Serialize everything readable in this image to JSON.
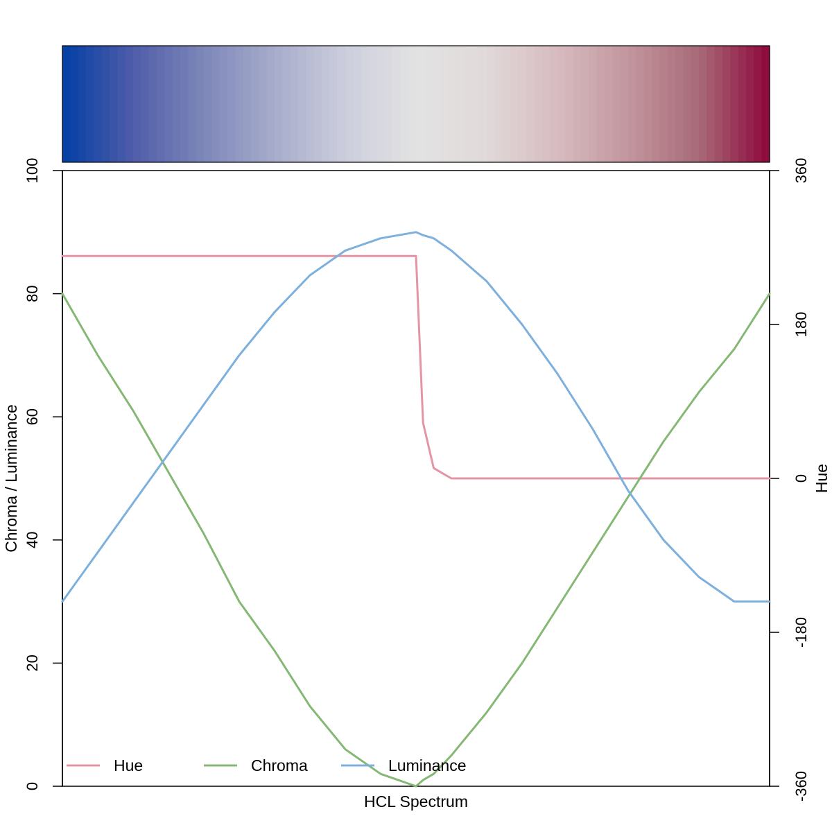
{
  "chart_data": {
    "type": "line",
    "title": "",
    "xlabel": "HCL Spectrum",
    "ylabel_left": "Chroma / Luminance",
    "ylabel_right": "Hue",
    "ylim_left": [
      0,
      100
    ],
    "ylim_right": [
      -360,
      360
    ],
    "yticks_left": [
      "0",
      "20",
      "40",
      "60",
      "80",
      "100"
    ],
    "yticks_right": [
      "-360",
      "-180",
      "0",
      "180",
      "360"
    ],
    "x": [
      0,
      0.05,
      0.1,
      0.15,
      0.2,
      0.25,
      0.3,
      0.35,
      0.4,
      0.45,
      0.5,
      0.5,
      0.51,
      0.525,
      0.55,
      0.6,
      0.65,
      0.7,
      0.75,
      0.8,
      0.85,
      0.9,
      0.95,
      1.0
    ],
    "series": [
      {
        "name": "Hue",
        "axis": "right",
        "color": "#E495A5",
        "values": [
          260,
          260,
          260,
          260,
          260,
          260,
          260,
          260,
          260,
          260,
          260,
          260,
          65,
          12,
          0,
          0,
          0,
          0,
          0,
          0,
          0,
          0,
          0,
          0
        ]
      },
      {
        "name": "Chroma",
        "axis": "left",
        "color": "#86B875",
        "values": [
          80,
          70,
          61,
          51,
          41,
          30,
          22,
          13,
          6,
          2,
          0,
          0,
          1,
          2,
          5,
          12,
          20,
          29,
          38,
          47,
          56,
          64,
          71,
          80
        ]
      },
      {
        "name": "Luminance",
        "axis": "left",
        "color": "#7DB0DD",
        "values": [
          30,
          38,
          46,
          54,
          62,
          70,
          77,
          83,
          87,
          89,
          90,
          90,
          89.5,
          89,
          87,
          82,
          75,
          67,
          58,
          48,
          40,
          34,
          30,
          30
        ]
      }
    ],
    "spectrum_colors": [
      "#023FA5",
      "#4F5DA9",
      "#7D87B9",
      "#A7ACCB",
      "#CCCEDD",
      "#E2E2E2",
      "#E1D9D9",
      "#D6BBC0",
      "#C2969E",
      "#A86A78",
      "#8E063B"
    ],
    "legend": {
      "placement": "bottom-left",
      "entries": [
        "Hue",
        "Chroma",
        "Luminance"
      ]
    },
    "grid": false
  }
}
